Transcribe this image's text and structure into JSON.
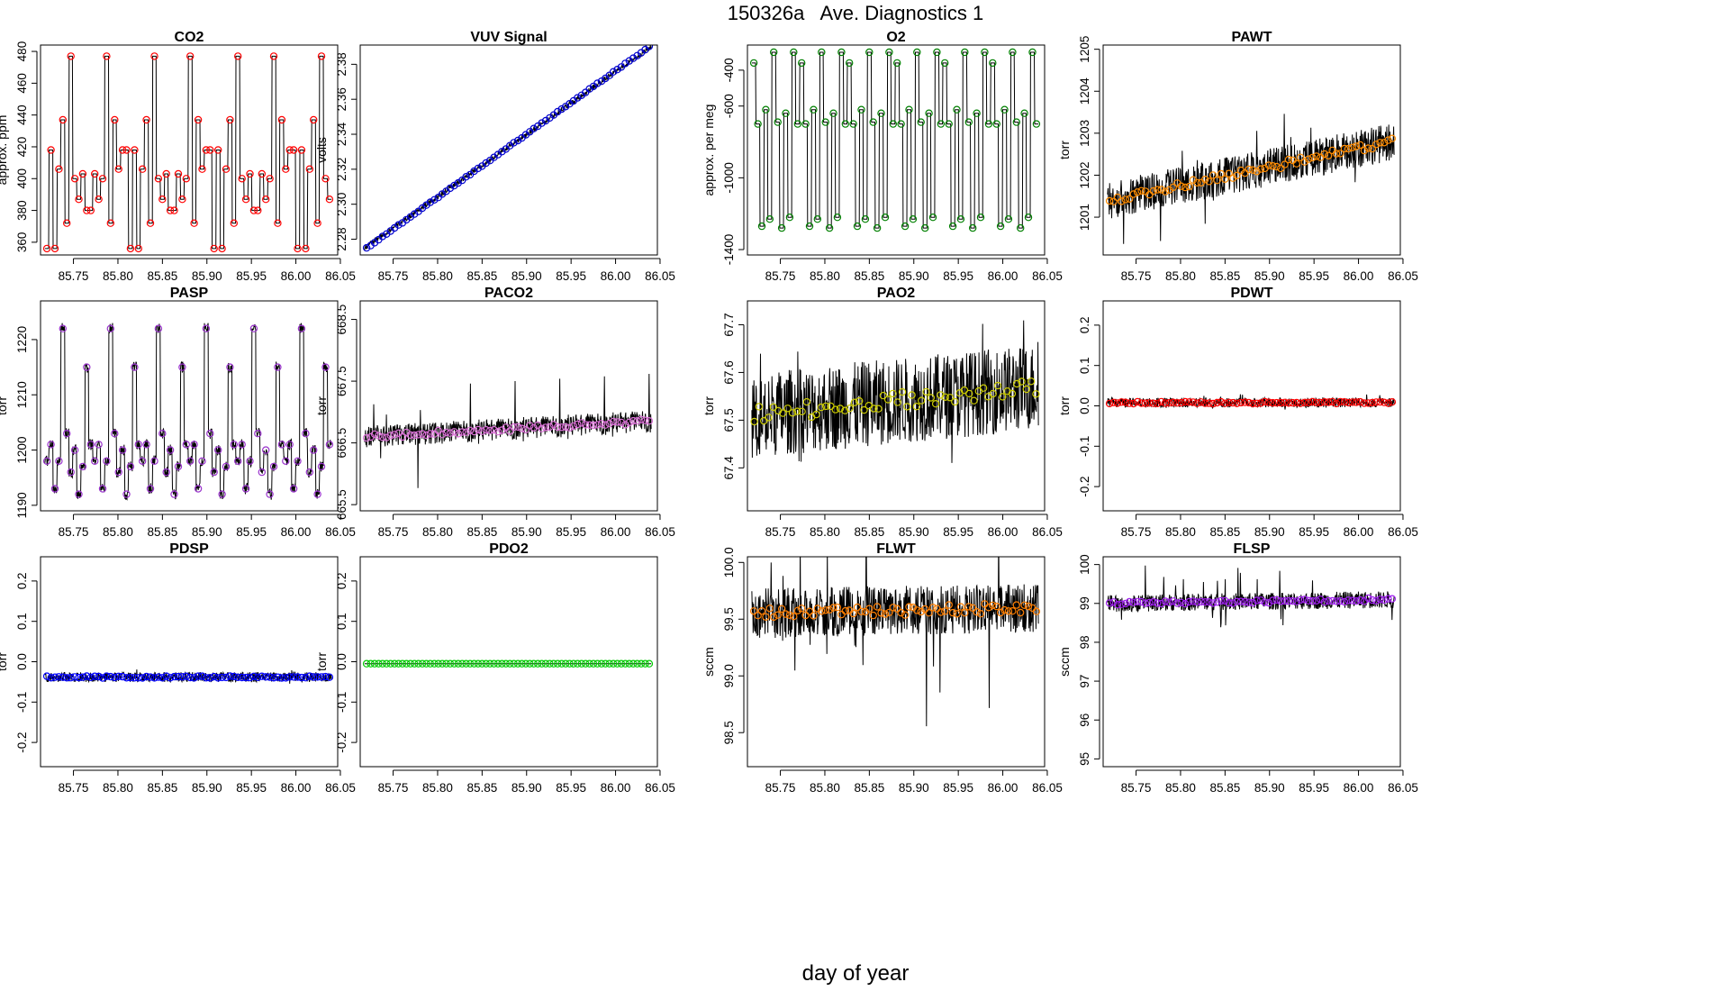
{
  "figure": {
    "title": "150326a   Ave. Diagnostics 1",
    "xlabel": "day of year",
    "x_range": [
      85.713,
      86.047
    ],
    "x_ticks": [
      "85.75",
      "85.80",
      "85.85",
      "85.90",
      "85.95",
      "86.00",
      "86.05"
    ]
  },
  "chart_data": [
    {
      "type": "line",
      "title": "CO2",
      "ylabel": "approx. ppm",
      "ylim": [
        352,
        484
      ],
      "yticks": [
        "360",
        "380",
        "400",
        "420",
        "440",
        "460",
        "480"
      ],
      "marker_color": "#ff0000",
      "marker_count": 72,
      "pattern": [
        356,
        418,
        356,
        406,
        437,
        372,
        477,
        400,
        387,
        403,
        380,
        380,
        403,
        387,
        400,
        477,
        372,
        437,
        406,
        418,
        418
      ],
      "noise": 0,
      "spike": 0,
      "trend": 0
    },
    {
      "type": "line",
      "title": "VUV Signal",
      "ylabel": "volts",
      "ylim": [
        2.271,
        2.391
      ],
      "yticks": [
        "2.28",
        "2.30",
        "2.32",
        "2.34",
        "2.36",
        "2.38"
      ],
      "marker_color": "#0000cd",
      "marker_count": 72,
      "pattern": [],
      "start": 2.275,
      "end": 2.39,
      "noise": 0.0015,
      "spike": 0
    },
    {
      "type": "line",
      "title": "O2",
      "ylabel": "approx. per meg",
      "ylim": [
        -1430,
        -260
      ],
      "yticks": [
        "-1400",
        "-1000",
        "-600",
        "-400"
      ],
      "marker_color": "#008000",
      "marker_count": 72,
      "pattern": [
        -360,
        -700,
        -1270,
        -620,
        -1230,
        -300,
        -690,
        -1280,
        -640,
        -1220,
        -300,
        -700
      ],
      "noise": 0,
      "spike": 0,
      "trend": 0
    },
    {
      "type": "line",
      "title": "PAWT",
      "ylabel": "torr",
      "ylim": [
        1200.1,
        1205.1
      ],
      "yticks": [
        "1201",
        "1202",
        "1203",
        "1204",
        "1205"
      ],
      "marker_color": "#ff8c00",
      "marker_count": 72,
      "pattern": [],
      "start": 1201.4,
      "end": 1202.8,
      "noise": 0.45,
      "spike": 1.0
    },
    {
      "type": "line",
      "title": "PASP",
      "ylabel": "torr",
      "ylim": [
        1189,
        1227
      ],
      "yticks": [
        "1190",
        "1200",
        "1210",
        "1220"
      ],
      "marker_color": "#9932cc",
      "marker_count": 72,
      "pattern": [
        1198,
        1201,
        1193,
        1198,
        1222,
        1203,
        1196,
        1200,
        1192,
        1197,
        1215,
        1201
      ],
      "noise": 1.0,
      "spike": 0
    },
    {
      "type": "line",
      "title": "PACO2",
      "ylabel": "torr",
      "ylim": [
        665.4,
        668.8
      ],
      "yticks": [
        "665.5",
        "666.5",
        "667.5",
        "668.5"
      ],
      "marker_color": "#da70d6",
      "marker_count": 72,
      "pattern": [],
      "start": 666.6,
      "end": 666.85,
      "noise": 0.18,
      "spike": 0.7
    },
    {
      "type": "line",
      "title": "PAO2",
      "ylabel": "torr",
      "ylim": [
        67.31,
        67.75
      ],
      "yticks": [
        "67.4",
        "67.5",
        "67.6",
        "67.7"
      ],
      "marker_color": "#cccc00",
      "marker_count": 60,
      "pattern": [],
      "start": 67.51,
      "end": 67.57,
      "noise": 0.09,
      "spike": 0.12
    },
    {
      "type": "line",
      "title": "PDWT",
      "ylabel": "torr",
      "ylim": [
        -0.26,
        0.26
      ],
      "yticks": [
        "-0.2",
        "-0.1",
        "0.0",
        "0.1",
        "0.2"
      ],
      "marker_color": "#ff0000",
      "marker_count": 72,
      "pattern": [],
      "start": 0.008,
      "end": 0.008,
      "noise": 0.012,
      "spike": 0.02
    },
    {
      "type": "line",
      "title": "PDSP",
      "ylabel": "torr",
      "ylim": [
        -0.26,
        0.26
      ],
      "yticks": [
        "-0.2",
        "-0.1",
        "0.0",
        "0.1",
        "0.2"
      ],
      "marker_color": "#0000ff",
      "marker_count": 72,
      "pattern": [],
      "start": -0.038,
      "end": -0.038,
      "noise": 0.012,
      "spike": 0.02
    },
    {
      "type": "line",
      "title": "PDO2",
      "ylabel": "torr",
      "ylim": [
        -0.26,
        0.26
      ],
      "yticks": [
        "-0.2",
        "-0.1",
        "0.0",
        "0.1",
        "0.2"
      ],
      "marker_color": "#00cc00",
      "marker_count": 72,
      "pattern": [],
      "start": -0.005,
      "end": -0.005,
      "noise": 0,
      "spike": 0
    },
    {
      "type": "line",
      "title": "FLWT",
      "ylabel": "sccm",
      "ylim": [
        98.2,
        100.05
      ],
      "yticks": [
        "98.5",
        "99.0",
        "99.5",
        "100.0"
      ],
      "marker_color": "#ff7f00",
      "marker_count": 72,
      "pattern": [],
      "start": 99.55,
      "end": 99.6,
      "noise": 0.22,
      "spike": 0.9
    },
    {
      "type": "line",
      "title": "FLSP",
      "ylabel": "sccm",
      "ylim": [
        94.8,
        100.2
      ],
      "yticks": [
        "95",
        "96",
        "97",
        "98",
        "99",
        "100"
      ],
      "marker_color": "#a020f0",
      "marker_count": 72,
      "pattern": [],
      "start": 99.0,
      "end": 99.1,
      "noise": 0.22,
      "spike": 0.9
    }
  ]
}
